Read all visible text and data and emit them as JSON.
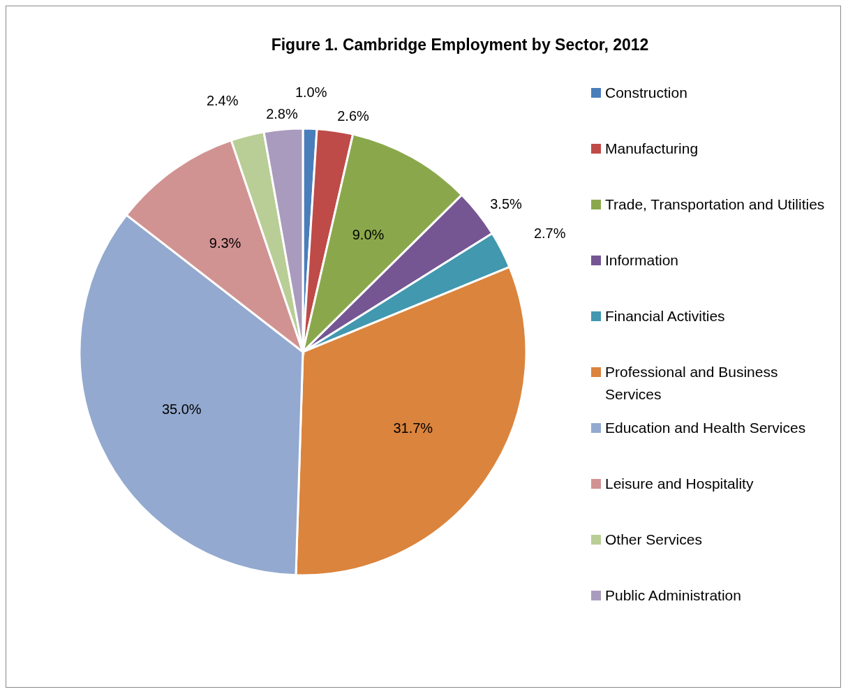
{
  "chart_data": {
    "type": "pie",
    "title": "Figure 1. Cambridge Employment by Sector, 2012",
    "categories": [
      "Construction",
      "Manufacturing",
      "Trade, Transportation and Utilities",
      "Information",
      "Financial Activities",
      "Professional and Business Services",
      "Education and Health Services",
      "Leisure and Hospitality",
      "Other Services",
      "Public Administration"
    ],
    "values": [
      1.0,
      2.6,
      9.0,
      3.5,
      2.7,
      31.7,
      35.0,
      9.3,
      2.4,
      2.8
    ],
    "value_labels": [
      "1.0%",
      "2.6%",
      "9.0%",
      "3.5%",
      "2.7%",
      "31.7%",
      "35.0%",
      "9.3%",
      "2.4%",
      "2.8%"
    ],
    "colors": [
      "#4a7ebb",
      "#be4b48",
      "#8aa84b",
      "#755692",
      "#4198af",
      "#db843d",
      "#93a9cf",
      "#d19392",
      "#b9cd96",
      "#a99bbd"
    ],
    "legend": "right"
  }
}
